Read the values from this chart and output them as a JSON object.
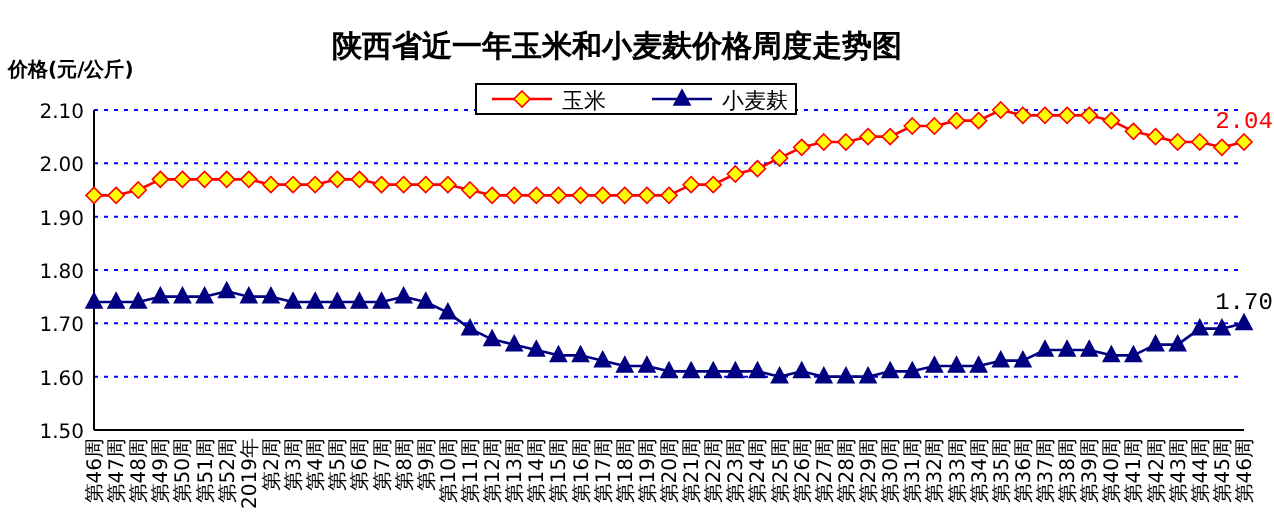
{
  "chart_data": {
    "type": "line",
    "title": "陕西省近一年玉米和小麦麸价格周度走势图",
    "ylabel": "价格(元/公斤)",
    "categories": [
      "第46周",
      "第47周",
      "第48周",
      "第49周",
      "第50周",
      "第51周",
      "第52周",
      "2019年",
      "第2周",
      "第3周",
      "第4周",
      "第5周",
      "第6周",
      "第7周",
      "第8周",
      "第9周",
      "第10周",
      "第11周",
      "第12周",
      "第13周",
      "第14周",
      "第15周",
      "第16周",
      "第17周",
      "第18周",
      "第19周",
      "第20周",
      "第21周",
      "第22周",
      "第23周",
      "第24周",
      "第25周",
      "第26周",
      "第27周",
      "第28周",
      "第29周",
      "第30周",
      "第31周",
      "第32周",
      "第33周",
      "第34周",
      "第35周",
      "第36周",
      "第37周",
      "第38周",
      "第39周",
      "第40周",
      "第41周",
      "第42周",
      "第43周",
      "第44周",
      "第45周",
      "第46周"
    ],
    "series": [
      {
        "name": "玉米",
        "color": "#ff0000",
        "marker": "diamond",
        "values": [
          1.94,
          1.94,
          1.95,
          1.97,
          1.97,
          1.97,
          1.97,
          1.97,
          1.96,
          1.96,
          1.96,
          1.97,
          1.97,
          1.96,
          1.96,
          1.96,
          1.96,
          1.95,
          1.94,
          1.94,
          1.94,
          1.94,
          1.94,
          1.94,
          1.94,
          1.94,
          1.94,
          1.96,
          1.96,
          1.98,
          1.99,
          2.01,
          2.03,
          2.04,
          2.04,
          2.05,
          2.05,
          2.07,
          2.07,
          2.08,
          2.08,
          2.1,
          2.09,
          2.09,
          2.09,
          2.09,
          2.08,
          2.06,
          2.05,
          2.04,
          2.04,
          2.03,
          2.04
        ],
        "value_labels": [
          null,
          null,
          null,
          null,
          null,
          null,
          null,
          null,
          null,
          null,
          null,
          null,
          null,
          null,
          null,
          null,
          null,
          null,
          null,
          null,
          null,
          null,
          null,
          null,
          null,
          null,
          null,
          null,
          null,
          null,
          null,
          null,
          null,
          null,
          null,
          null,
          null,
          null,
          null,
          null,
          null,
          null,
          null,
          null,
          null,
          null,
          null,
          null,
          null,
          null,
          null,
          null,
          "2.04"
        ]
      },
      {
        "name": "小麦麸",
        "color": "#000080",
        "marker": "triangle",
        "values": [
          1.74,
          1.74,
          1.74,
          1.75,
          1.75,
          1.75,
          1.76,
          1.75,
          1.75,
          1.74,
          1.74,
          1.74,
          1.74,
          1.74,
          1.75,
          1.74,
          1.72,
          1.69,
          1.67,
          1.66,
          1.65,
          1.64,
          1.64,
          1.63,
          1.62,
          1.62,
          1.61,
          1.61,
          1.61,
          1.61,
          1.61,
          1.6,
          1.61,
          1.6,
          1.6,
          1.6,
          1.61,
          1.61,
          1.62,
          1.62,
          1.62,
          1.63,
          1.63,
          1.65,
          1.65,
          1.65,
          1.64,
          1.64,
          1.66,
          1.66,
          1.69,
          1.69,
          1.7
        ],
        "value_labels": [
          null,
          null,
          null,
          null,
          null,
          null,
          null,
          null,
          null,
          null,
          null,
          null,
          null,
          null,
          null,
          null,
          null,
          null,
          null,
          null,
          null,
          null,
          null,
          null,
          null,
          null,
          null,
          null,
          null,
          null,
          null,
          null,
          null,
          null,
          null,
          null,
          null,
          null,
          null,
          null,
          null,
          null,
          null,
          null,
          null,
          null,
          null,
          null,
          null,
          null,
          null,
          null,
          "1.70"
        ]
      }
    ],
    "ylim": [
      1.5,
      2.1
    ],
    "yticks": [
      {
        "value": 1.5,
        "label": "1.50"
      },
      {
        "value": 1.6,
        "label": "1.60"
      },
      {
        "value": 1.7,
        "label": "1.70"
      },
      {
        "value": 1.8,
        "label": "1.80"
      },
      {
        "value": 1.9,
        "label": "1.90"
      },
      {
        "value": 2.0,
        "label": "2.00"
      },
      {
        "value": 2.1,
        "label": "2.10"
      }
    ],
    "grid": "y",
    "legend": "top",
    "line_style": "solid"
  }
}
